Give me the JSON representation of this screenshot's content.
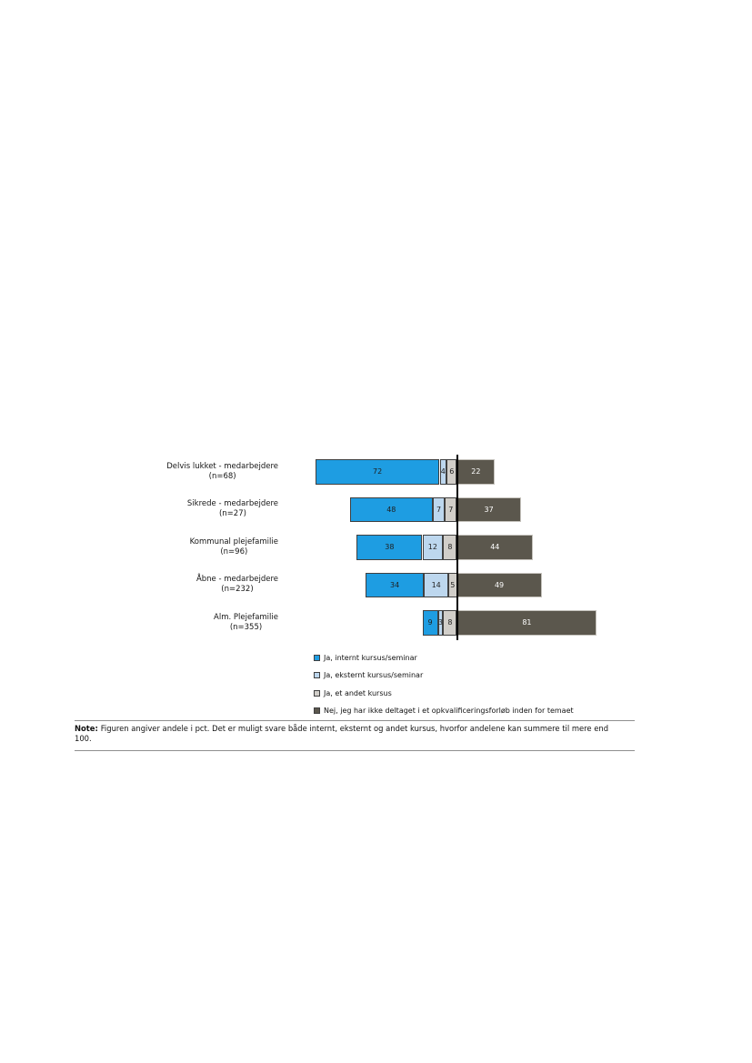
{
  "chart_data": {
    "type": "bar",
    "subtype": "horizontal-diverging-stacked",
    "unit": "pct",
    "categories": [
      {
        "label": "Delvis lukket - medarbejdere",
        "n_label": "(n=68)"
      },
      {
        "label": "Sikrede - medarbejdere",
        "n_label": "(n=27)"
      },
      {
        "label": "Kommunal plejefamilie",
        "n_label": "(n=96)"
      },
      {
        "label": "Åbne - medarbejdere",
        "n_label": "(n=232)"
      },
      {
        "label": "Alm. Plejefamilie",
        "n_label": "(n=355)"
      }
    ],
    "series": [
      {
        "name": "Ja, internt kursus/seminar",
        "side": "left",
        "color": "#1E9DE2",
        "values": [
          72,
          48,
          38,
          34,
          9
        ]
      },
      {
        "name": "Ja, eksternt kursus/seminar",
        "side": "left",
        "color": "#BDD7EE",
        "values": [
          4,
          7,
          12,
          14,
          3
        ]
      },
      {
        "name": "Ja, et andet kursus",
        "side": "left",
        "color": "#D1CEC9",
        "values": [
          6,
          7,
          8,
          5,
          8
        ]
      },
      {
        "name": "Nej, jeg har ikke deltaget i et opkvalificeringsforløb inden for temaet",
        "side": "right",
        "color": "#5B574D",
        "values": [
          22,
          37,
          44,
          49,
          81
        ]
      }
    ],
    "baseline": {
      "description": "vertical divider between Ja-answers and Nej-answer",
      "color": "#000000"
    },
    "legend_position": "bottom-left",
    "grid": false
  },
  "note": {
    "label": "Note:",
    "text": "Figuren angiver andele i pct. Det er muligt svare både internt, eksternt og andet kursus, hvorfor andelene kan summere til mere end 100."
  }
}
